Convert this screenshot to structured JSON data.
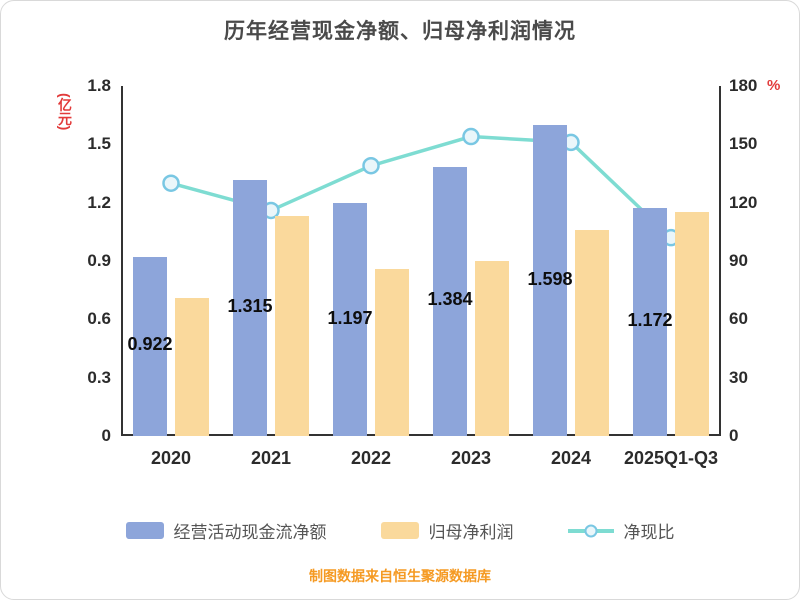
{
  "chart_data": {
    "type": "combo-bar-line",
    "title": "历年经营现金净额、归母净利润情况",
    "categories": [
      "2020",
      "2021",
      "2022",
      "2023",
      "2024",
      "2025Q1-Q3"
    ],
    "series": [
      {
        "name": "经营活动现金流净额",
        "type": "bar",
        "axis": "left",
        "color": "#8da5da",
        "values": [
          0.922,
          1.315,
          1.197,
          1.384,
          1.598,
          1.172
        ],
        "data_labels": [
          "0.922",
          "1.315",
          "1.197",
          "1.384",
          "1.598",
          "1.172"
        ]
      },
      {
        "name": "归母净利润",
        "type": "bar",
        "axis": "left",
        "color": "#fad99c",
        "values": [
          0.71,
          1.13,
          0.86,
          0.9,
          1.06,
          1.15
        ]
      },
      {
        "name": "净现比",
        "type": "line",
        "axis": "right",
        "color": "#7edcd2",
        "marker_fill": "#eaf6fa",
        "marker_stroke": "#79c7e3",
        "values_pct": [
          130,
          116,
          139,
          154,
          151,
          102
        ]
      }
    ],
    "left_axis": {
      "label": "(亿元)",
      "color": "#e23a3a",
      "min": 0,
      "max": 1.8,
      "ticks": [
        "0",
        "0.3",
        "0.6",
        "0.9",
        "1.2",
        "1.5",
        "1.8"
      ]
    },
    "right_axis": {
      "label": "%",
      "color": "#e23a3a",
      "min": 0,
      "max": 180,
      "ticks": [
        "0",
        "30",
        "60",
        "90",
        "120",
        "150",
        "180"
      ]
    },
    "ylim_left": [
      0,
      1.8
    ],
    "ylim_right": [
      0,
      180
    ],
    "grid": false,
    "legend_position": "bottom",
    "xlabel": "",
    "ylabel": "(亿元)"
  },
  "footer": {
    "text": "制图数据来自恒生聚源数据库",
    "color": "#f59a23"
  }
}
